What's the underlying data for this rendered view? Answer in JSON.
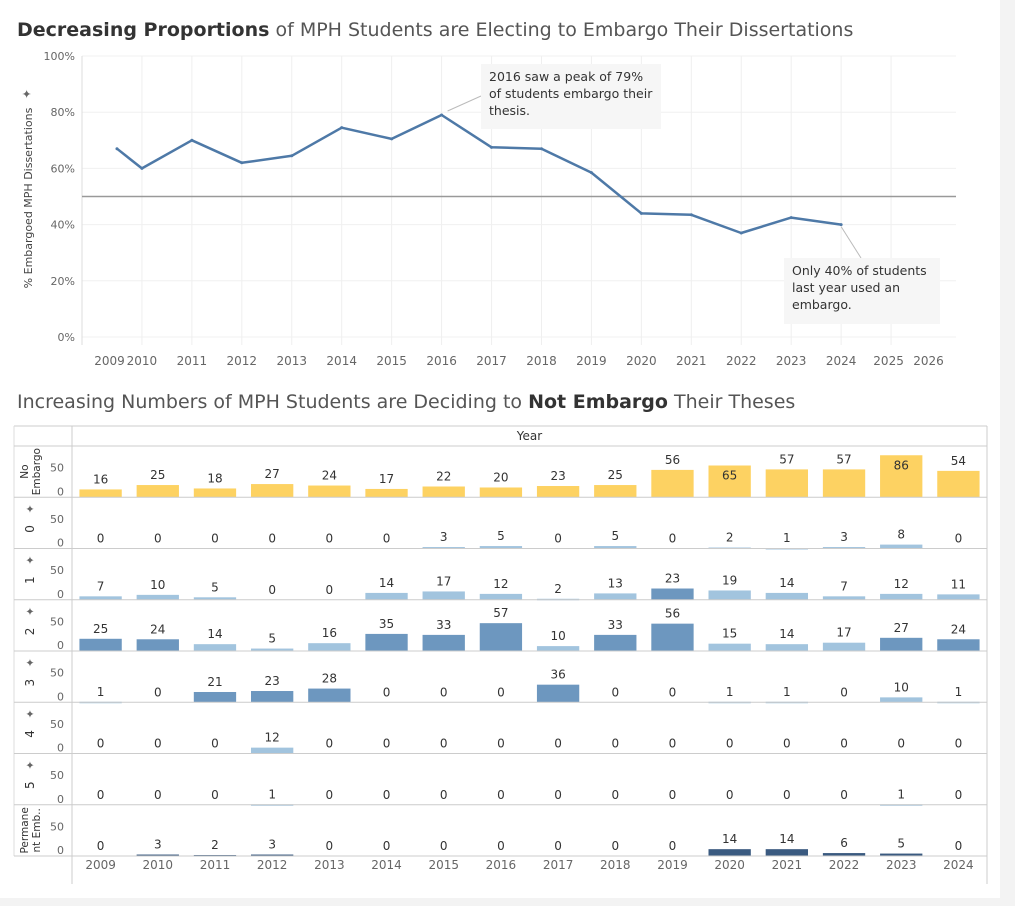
{
  "titles": {
    "chart1_bold": "Decreasing Proportions",
    "chart1_rest": " of MPH Students are Electing to Embargo Their Dissertations",
    "chart2_pre": "Increasing Numbers of MPH Students are Deciding to ",
    "chart2_bold": "Not Embargo",
    "chart2_post": " Their Theses"
  },
  "colors": {
    "line": "#4e79a7",
    "reference": "#999999",
    "no_embargo": "#fdd262",
    "embargo_light": "#a2c4de",
    "embargo_mid": "#6d97bf",
    "permanent": "#3a5a80"
  },
  "chart_data": [
    {
      "type": "line",
      "title": "Decreasing Proportions of MPH Students are Electing to Embargo Their Dissertations",
      "ylabel": "% Embargoed MPH Dissertations",
      "xlabel": "",
      "ylim": [
        0,
        100
      ],
      "y_ticks": [
        "0%",
        "20%",
        "40%",
        "60%",
        "80%",
        "100%"
      ],
      "x_ticks": [
        "2009",
        "2010",
        "2011",
        "2012",
        "2013",
        "2014",
        "2015",
        "2016",
        "2017",
        "2018",
        "2019",
        "2020",
        "2021",
        "2022",
        "2023",
        "2024",
        "2025",
        "2026"
      ],
      "x": [
        2009.5,
        2010,
        2011,
        2012,
        2013,
        2014,
        2015,
        2016,
        2017,
        2018,
        2019,
        2020,
        2021,
        2022,
        2023,
        2024
      ],
      "values": [
        67,
        60,
        70,
        62,
        64.5,
        74.5,
        70.5,
        79,
        67.5,
        67,
        58.5,
        44,
        43.5,
        37,
        42.5,
        40
      ],
      "reference_line": 50,
      "grid": true,
      "annotations": [
        {
          "text": "2016 saw a peak of  79% of students embargo their thesis.",
          "x": 2016,
          "y": 79
        },
        {
          "text": "Only 40% of students last year used an embargo.",
          "x": 2024,
          "y": 40
        }
      ]
    },
    {
      "type": "bar",
      "title": "Increasing Numbers of MPH Students are Deciding to Not Embargo Their Theses",
      "xlabel": "Year",
      "categories": [
        "2009",
        "2010",
        "2011",
        "2012",
        "2013",
        "2014",
        "2015",
        "2016",
        "2017",
        "2018",
        "2019",
        "2020",
        "2021",
        "2022",
        "2023",
        "2024"
      ],
      "y_ticks": [
        "0",
        "50"
      ],
      "series": [
        {
          "name": "No Embargo",
          "values": [
            16,
            25,
            18,
            27,
            24,
            17,
            22,
            20,
            23,
            25,
            56,
            65,
            57,
            57,
            86,
            54
          ]
        },
        {
          "name": "0",
          "values": [
            0,
            0,
            0,
            0,
            0,
            0,
            3,
            5,
            0,
            5,
            0,
            2,
            1,
            3,
            8,
            0
          ]
        },
        {
          "name": "1",
          "values": [
            7,
            10,
            5,
            0,
            0,
            14,
            17,
            12,
            2,
            13,
            23,
            19,
            14,
            7,
            12,
            11
          ]
        },
        {
          "name": "2",
          "values": [
            25,
            24,
            14,
            5,
            16,
            35,
            33,
            57,
            10,
            33,
            56,
            15,
            14,
            17,
            27,
            24
          ]
        },
        {
          "name": "3",
          "values": [
            1,
            0,
            21,
            23,
            28,
            0,
            0,
            0,
            36,
            0,
            0,
            1,
            1,
            0,
            10,
            1
          ]
        },
        {
          "name": "4",
          "values": [
            0,
            0,
            0,
            12,
            0,
            0,
            0,
            0,
            0,
            0,
            0,
            0,
            0,
            0,
            0,
            0
          ]
        },
        {
          "name": "5",
          "values": [
            0,
            0,
            0,
            1,
            0,
            0,
            0,
            0,
            0,
            0,
            0,
            0,
            0,
            0,
            1,
            0
          ]
        },
        {
          "name": "Permanent Emb..",
          "values": [
            0,
            3,
            2,
            3,
            0,
            0,
            0,
            0,
            0,
            0,
            0,
            14,
            14,
            6,
            5,
            0
          ]
        }
      ]
    }
  ]
}
